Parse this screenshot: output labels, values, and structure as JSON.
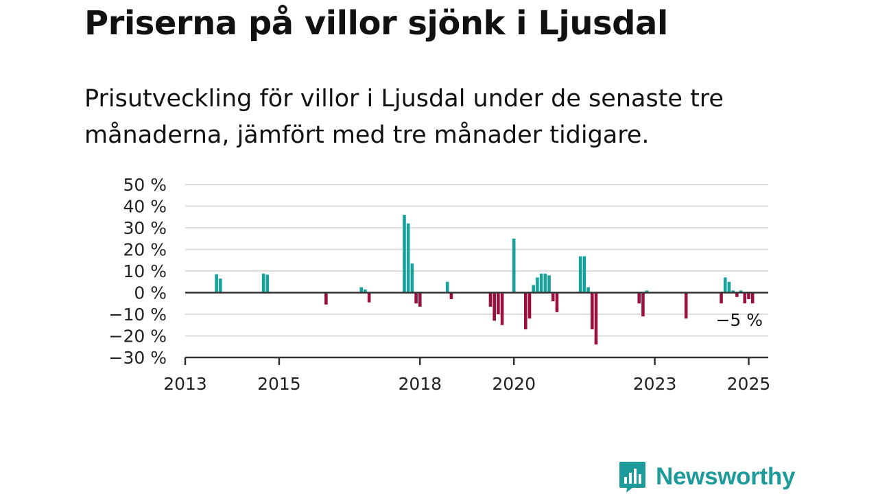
{
  "title": "Priserna på villor sjönk i Ljusdal",
  "subtitle": "Prisutveckling för villor i Ljusdal under de senaste tre månaderna, jämfört med tre månader tidigare.",
  "brand": {
    "name": "Newsworthy",
    "color": "#1d9a9a",
    "icon": "bar-chart-logo-icon"
  },
  "colors": {
    "positive": "#17a39b",
    "negative": "#9b0f3f",
    "grid": "#dddddd",
    "axis": "#333333"
  },
  "chart_data": {
    "type": "bar",
    "ylim": [
      -30,
      50
    ],
    "y_ticks": [
      50,
      40,
      30,
      20,
      10,
      0,
      -10,
      -20,
      -30
    ],
    "y_tick_labels": [
      "50 %",
      "40 %",
      "30 %",
      "20 %",
      "10 %",
      "0 %",
      "−10 %",
      "−20 %",
      "−30 %"
    ],
    "xlim": [
      "2013-01",
      "2025-06"
    ],
    "x_ticks": [
      "2013",
      "2015",
      "2018",
      "2020",
      "2023",
      "2025"
    ],
    "grid": true,
    "last_value_label": "−5 %",
    "x": [
      "2013-09",
      "2013-10",
      "2014-09",
      "2014-10",
      "2016-01",
      "2016-10",
      "2016-11",
      "2016-12",
      "2017-09",
      "2017-10",
      "2017-11",
      "2017-12",
      "2018-01",
      "2018-08",
      "2018-09",
      "2019-07",
      "2019-08",
      "2019-09",
      "2019-10",
      "2020-01",
      "2020-04",
      "2020-05",
      "2020-06",
      "2020-07",
      "2020-08",
      "2020-09",
      "2020-10",
      "2020-11",
      "2020-12",
      "2021-06",
      "2021-07",
      "2021-08",
      "2021-09",
      "2021-10",
      "2022-09",
      "2022-10",
      "2022-11",
      "2023-09",
      "2024-06",
      "2024-07",
      "2024-08",
      "2024-09",
      "2024-10",
      "2024-11",
      "2024-12",
      "2025-01",
      "2025-02"
    ],
    "values": [
      8.5,
      6.5,
      8.8,
      8.3,
      -5.5,
      2.5,
      1.5,
      -4.5,
      36,
      32,
      13.5,
      -5,
      -6.5,
      5,
      -3,
      -6.5,
      -13,
      -10,
      -15,
      25,
      -17,
      -12,
      3.5,
      7,
      8.8,
      8.8,
      8,
      -4,
      -9,
      16.8,
      16.8,
      2.5,
      -17,
      -24,
      -5,
      -11,
      1,
      -12,
      -5,
      7,
      5,
      1,
      -2,
      1,
      -5,
      -3,
      -5
    ]
  }
}
